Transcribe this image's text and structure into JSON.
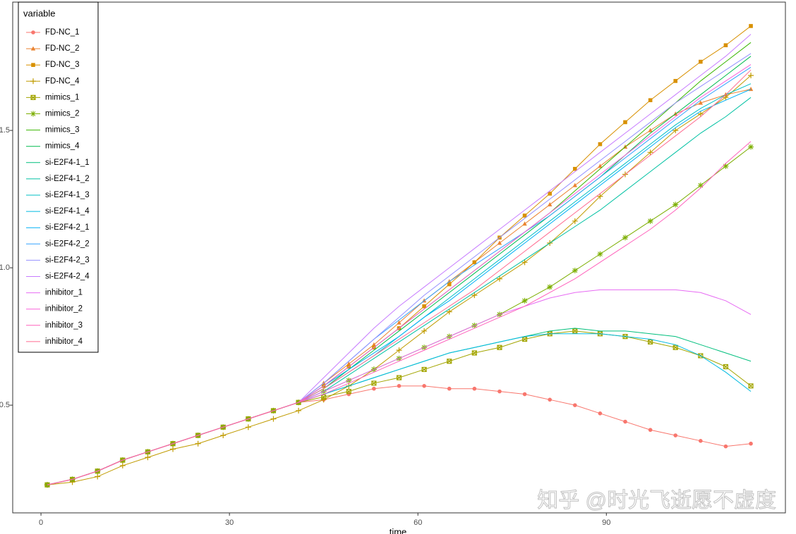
{
  "chart_data": {
    "type": "line",
    "xlabel": "time",
    "legend_title": "variable",
    "watermark": "知乎 @时光飞逝愿不虚度",
    "legend_position": "top-left",
    "xlim": [
      -4.5,
      118.5
    ],
    "xticks": [
      0,
      30,
      60,
      90
    ],
    "ylim": [
      0.108,
      1.967
    ],
    "yticks": [
      0.5,
      {
        "value": 1,
        "label": "1.0"
      },
      1.5
    ],
    "x": [
      1,
      5,
      9,
      13,
      17,
      21,
      25,
      29,
      33,
      37,
      41,
      45,
      49,
      53,
      57,
      61,
      65,
      69,
      73,
      77,
      81,
      85,
      89,
      93,
      97,
      101,
      105,
      109,
      113
    ],
    "series": [
      {
        "name": "FD-NC_1",
        "color": "#F8766D",
        "marker": "circle",
        "values": [
          0.21,
          0.23,
          0.26,
          0.3,
          0.33,
          0.36,
          0.39,
          0.42,
          0.45,
          0.48,
          0.51,
          0.52,
          0.54,
          0.56,
          0.57,
          0.57,
          0.56,
          0.56,
          0.55,
          0.54,
          0.52,
          0.5,
          0.47,
          0.44,
          0.41,
          0.39,
          0.37,
          0.35,
          0.36
        ]
      },
      {
        "name": "FD-NC_2",
        "color": "#EA8331",
        "marker": "triangle",
        "values": [
          0.21,
          0.23,
          0.26,
          0.3,
          0.33,
          0.36,
          0.39,
          0.42,
          0.45,
          0.48,
          0.51,
          0.58,
          0.65,
          0.72,
          0.8,
          0.88,
          0.95,
          1.02,
          1.09,
          1.16,
          1.23,
          1.3,
          1.37,
          1.44,
          1.5,
          1.56,
          1.6,
          1.63,
          1.65
        ]
      },
      {
        "name": "FD-NC_3",
        "color": "#D89000",
        "marker": "square",
        "values": [
          0.21,
          0.23,
          0.26,
          0.3,
          0.33,
          0.36,
          0.39,
          0.42,
          0.45,
          0.48,
          0.51,
          0.57,
          0.64,
          0.71,
          0.78,
          0.86,
          0.94,
          1.02,
          1.11,
          1.19,
          1.27,
          1.36,
          1.45,
          1.53,
          1.61,
          1.68,
          1.75,
          1.81,
          1.88
        ]
      },
      {
        "name": "FD-NC_4",
        "color": "#C09B00",
        "marker": "plus",
        "values": [
          0.21,
          0.22,
          0.24,
          0.28,
          0.31,
          0.34,
          0.36,
          0.39,
          0.42,
          0.45,
          0.48,
          0.52,
          0.57,
          0.63,
          0.7,
          0.77,
          0.84,
          0.9,
          0.96,
          1.02,
          1.09,
          1.17,
          1.26,
          1.34,
          1.42,
          1.5,
          1.56,
          1.62,
          1.7
        ]
      },
      {
        "name": "mimics_1",
        "color": "#A3A500",
        "marker": "boxx",
        "values": [
          0.21,
          0.23,
          0.26,
          0.3,
          0.33,
          0.36,
          0.39,
          0.42,
          0.45,
          0.48,
          0.51,
          0.53,
          0.55,
          0.58,
          0.6,
          0.63,
          0.66,
          0.69,
          0.71,
          0.74,
          0.76,
          0.77,
          0.76,
          0.75,
          0.73,
          0.71,
          0.68,
          0.64,
          0.57
        ]
      },
      {
        "name": "mimics_2",
        "color": "#7CAE00",
        "marker": "asterisk",
        "values": [
          0.21,
          0.23,
          0.26,
          0.3,
          0.33,
          0.36,
          0.39,
          0.42,
          0.45,
          0.48,
          0.51,
          0.55,
          0.59,
          0.63,
          0.67,
          0.71,
          0.75,
          0.79,
          0.83,
          0.88,
          0.93,
          0.99,
          1.05,
          1.11,
          1.17,
          1.23,
          1.3,
          1.37,
          1.44
        ]
      },
      {
        "name": "mimics_3",
        "color": "#39B600",
        "values": [
          0.21,
          0.23,
          0.26,
          0.3,
          0.33,
          0.36,
          0.39,
          0.42,
          0.45,
          0.48,
          0.51,
          0.57,
          0.64,
          0.71,
          0.78,
          0.85,
          0.92,
          0.99,
          1.06,
          1.13,
          1.2,
          1.28,
          1.36,
          1.44,
          1.52,
          1.6,
          1.68,
          1.75,
          1.82
        ]
      },
      {
        "name": "mimics_4",
        "color": "#00BB4E",
        "values": [
          0.21,
          0.23,
          0.26,
          0.3,
          0.33,
          0.36,
          0.39,
          0.42,
          0.45,
          0.48,
          0.51,
          0.56,
          0.63,
          0.7,
          0.77,
          0.84,
          0.91,
          0.98,
          1.05,
          1.12,
          1.19,
          1.26,
          1.33,
          1.41,
          1.49,
          1.56,
          1.63,
          1.7,
          1.77
        ]
      },
      {
        "name": "si-E2F4-1_1",
        "color": "#00BF7D",
        "values": [
          0.21,
          0.23,
          0.26,
          0.3,
          0.33,
          0.36,
          0.39,
          0.42,
          0.45,
          0.48,
          0.51,
          0.54,
          0.57,
          0.6,
          0.63,
          0.66,
          0.69,
          0.71,
          0.73,
          0.75,
          0.77,
          0.78,
          0.77,
          0.77,
          0.76,
          0.75,
          0.72,
          0.69,
          0.66
        ]
      },
      {
        "name": "si-E2F4-1_2",
        "color": "#00C1A3",
        "values": [
          0.21,
          0.23,
          0.26,
          0.3,
          0.33,
          0.36,
          0.39,
          0.42,
          0.45,
          0.48,
          0.51,
          0.55,
          0.61,
          0.67,
          0.73,
          0.79,
          0.85,
          0.91,
          0.97,
          1.03,
          1.09,
          1.15,
          1.21,
          1.28,
          1.35,
          1.42,
          1.49,
          1.55,
          1.62
        ]
      },
      {
        "name": "si-E2F4-1_3",
        "color": "#00BFC4",
        "values": [
          0.21,
          0.23,
          0.26,
          0.3,
          0.33,
          0.36,
          0.39,
          0.42,
          0.45,
          0.48,
          0.51,
          0.56,
          0.62,
          0.68,
          0.75,
          0.82,
          0.89,
          0.96,
          1.03,
          1.1,
          1.17,
          1.24,
          1.31,
          1.38,
          1.45,
          1.52,
          1.58,
          1.63,
          1.67
        ]
      },
      {
        "name": "si-E2F4-1_4",
        "color": "#00BAE0",
        "values": [
          0.21,
          0.23,
          0.26,
          0.3,
          0.33,
          0.36,
          0.39,
          0.42,
          0.45,
          0.48,
          0.51,
          0.54,
          0.57,
          0.6,
          0.63,
          0.66,
          0.69,
          0.71,
          0.73,
          0.75,
          0.76,
          0.76,
          0.76,
          0.75,
          0.74,
          0.72,
          0.68,
          0.62,
          0.55
        ]
      },
      {
        "name": "si-E2F4-2_1",
        "color": "#00B0F6",
        "values": [
          0.21,
          0.23,
          0.26,
          0.3,
          0.33,
          0.36,
          0.39,
          0.42,
          0.45,
          0.48,
          0.51,
          0.57,
          0.63,
          0.69,
          0.75,
          0.82,
          0.88,
          0.95,
          1.02,
          1.09,
          1.16,
          1.23,
          1.3,
          1.37,
          1.44,
          1.51,
          1.57,
          1.61,
          1.65
        ]
      },
      {
        "name": "si-E2F4-2_2",
        "color": "#35A2FF",
        "values": [
          0.21,
          0.23,
          0.26,
          0.3,
          0.33,
          0.36,
          0.39,
          0.42,
          0.45,
          0.48,
          0.51,
          0.58,
          0.66,
          0.74,
          0.81,
          0.88,
          0.95,
          1.01,
          1.07,
          1.13,
          1.19,
          1.26,
          1.33,
          1.4,
          1.47,
          1.54,
          1.61,
          1.67,
          1.73
        ]
      },
      {
        "name": "si-E2F4-2_3",
        "color": "#9590FF",
        "values": [
          0.21,
          0.23,
          0.26,
          0.3,
          0.33,
          0.36,
          0.39,
          0.42,
          0.45,
          0.48,
          0.51,
          0.58,
          0.66,
          0.74,
          0.82,
          0.9,
          0.97,
          1.04,
          1.11,
          1.18,
          1.25,
          1.32,
          1.39,
          1.46,
          1.53,
          1.6,
          1.66,
          1.72,
          1.78
        ]
      },
      {
        "name": "si-E2F4-2_4",
        "color": "#C77CFF",
        "values": [
          0.21,
          0.23,
          0.26,
          0.3,
          0.33,
          0.36,
          0.39,
          0.42,
          0.45,
          0.48,
          0.51,
          0.6,
          0.69,
          0.78,
          0.86,
          0.93,
          1.0,
          1.07,
          1.14,
          1.21,
          1.28,
          1.35,
          1.42,
          1.49,
          1.56,
          1.63,
          1.7,
          1.77,
          1.85
        ]
      },
      {
        "name": "inhibitor_1",
        "color": "#E76BF3",
        "values": [
          0.21,
          0.23,
          0.26,
          0.3,
          0.33,
          0.36,
          0.39,
          0.42,
          0.45,
          0.48,
          0.51,
          0.55,
          0.59,
          0.63,
          0.67,
          0.71,
          0.75,
          0.79,
          0.83,
          0.86,
          0.89,
          0.91,
          0.92,
          0.92,
          0.92,
          0.92,
          0.91,
          0.88,
          0.83
        ]
      },
      {
        "name": "inhibitor_2",
        "color": "#FA62DB",
        "values": [
          0.21,
          0.23,
          0.26,
          0.3,
          0.33,
          0.36,
          0.39,
          0.42,
          0.45,
          0.48,
          0.51,
          0.57,
          0.64,
          0.71,
          0.78,
          0.85,
          0.92,
          0.99,
          1.06,
          1.13,
          1.2,
          1.27,
          1.34,
          1.41,
          1.48,
          1.55,
          1.62,
          1.68,
          1.74
        ]
      },
      {
        "name": "inhibitor_3",
        "color": "#FF62BC",
        "values": [
          0.21,
          0.23,
          0.26,
          0.3,
          0.33,
          0.36,
          0.39,
          0.42,
          0.45,
          0.48,
          0.51,
          0.54,
          0.58,
          0.62,
          0.66,
          0.7,
          0.74,
          0.78,
          0.82,
          0.86,
          0.91,
          0.96,
          1.02,
          1.08,
          1.14,
          1.21,
          1.29,
          1.38,
          1.46
        ]
      },
      {
        "name": "inhibitor_4",
        "color": "#FF6C91",
        "values": [
          0.21,
          0.23,
          0.26,
          0.3,
          0.33,
          0.36,
          0.39,
          0.42,
          0.45,
          0.48,
          0.51,
          0.56,
          0.62,
          0.68,
          0.74,
          0.8,
          0.86,
          0.92,
          0.99,
          1.06,
          1.13,
          1.2,
          1.27,
          1.34,
          1.41,
          1.48,
          1.55,
          1.63,
          1.72
        ]
      }
    ]
  }
}
